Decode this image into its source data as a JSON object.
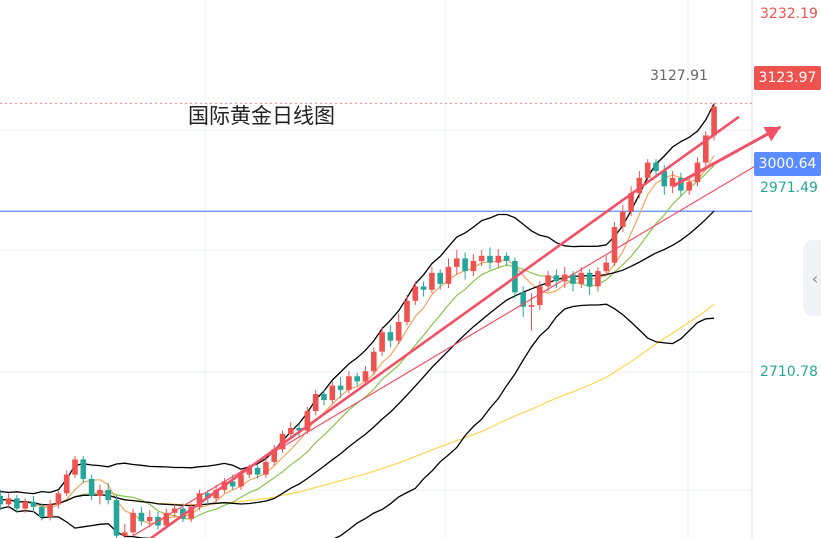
{
  "title": "国际黄金日线图",
  "price_axis": {
    "top_label": "3232.19",
    "ma_label": "2971.49",
    "bottom_label": "2710.78",
    "horizontal_line_label": "3000.64",
    "current_price_label": "3123.97",
    "peak_label": "3127.91"
  },
  "colors": {
    "up": "#ef5350",
    "down": "#26a69a",
    "boll": "#000000",
    "ma_fast": "#f4a460",
    "ma_mid": "#8bc34a",
    "ma_slow": "#ffd54f",
    "trendline": "#f25066",
    "hline": "#5b8cff"
  },
  "icons": {
    "scroll": "chevron-left-icon"
  },
  "chart_data": {
    "type": "candlestick",
    "title": "国际黄金日线图",
    "ylim": [
      2620,
      3245
    ],
    "candles": [
      [
        2662,
        2665,
        2650,
        2670
      ],
      [
        2665,
        2655,
        2648,
        2672
      ],
      [
        2655,
        2662,
        2650,
        2668
      ],
      [
        2662,
        2650,
        2645,
        2666
      ],
      [
        2650,
        2658,
        2645,
        2662
      ],
      [
        2658,
        2652,
        2645,
        2665
      ],
      [
        2652,
        2640,
        2636,
        2656
      ],
      [
        2640,
        2655,
        2636,
        2660
      ],
      [
        2655,
        2668,
        2650,
        2672
      ],
      [
        2668,
        2690,
        2665,
        2695
      ],
      [
        2690,
        2708,
        2686,
        2712
      ],
      [
        2708,
        2685,
        2680,
        2712
      ],
      [
        2685,
        2665,
        2660,
        2690
      ],
      [
        2665,
        2672,
        2655,
        2678
      ],
      [
        2672,
        2660,
        2655,
        2680
      ],
      [
        2660,
        2618,
        2612,
        2666
      ],
      [
        2618,
        2622,
        2612,
        2632
      ],
      [
        2622,
        2645,
        2618,
        2650
      ],
      [
        2645,
        2635,
        2630,
        2652
      ],
      [
        2635,
        2640,
        2628,
        2648
      ],
      [
        2640,
        2630,
        2625,
        2646
      ],
      [
        2630,
        2645,
        2626,
        2650
      ],
      [
        2645,
        2650,
        2640,
        2655
      ],
      [
        2650,
        2638,
        2634,
        2656
      ],
      [
        2638,
        2652,
        2634,
        2656
      ],
      [
        2652,
        2668,
        2648,
        2672
      ],
      [
        2668,
        2662,
        2655,
        2672
      ],
      [
        2662,
        2672,
        2658,
        2678
      ],
      [
        2672,
        2682,
        2668,
        2686
      ],
      [
        2682,
        2676,
        2672,
        2690
      ],
      [
        2676,
        2690,
        2672,
        2695
      ],
      [
        2690,
        2698,
        2686,
        2702
      ],
      [
        2698,
        2690,
        2685,
        2702
      ],
      [
        2690,
        2705,
        2686,
        2712
      ],
      [
        2705,
        2720,
        2700,
        2725
      ],
      [
        2720,
        2738,
        2716,
        2742
      ],
      [
        2738,
        2745,
        2734,
        2752
      ],
      [
        2745,
        2742,
        2735,
        2750
      ],
      [
        2742,
        2765,
        2738,
        2770
      ],
      [
        2765,
        2785,
        2760,
        2790
      ],
      [
        2785,
        2778,
        2772,
        2790
      ],
      [
        2778,
        2795,
        2774,
        2800
      ],
      [
        2795,
        2790,
        2780,
        2805
      ],
      [
        2790,
        2806,
        2786,
        2812
      ],
      [
        2806,
        2800,
        2794,
        2810
      ],
      [
        2800,
        2812,
        2796,
        2818
      ],
      [
        2812,
        2835,
        2808,
        2840
      ],
      [
        2835,
        2858,
        2830,
        2864
      ],
      [
        2858,
        2848,
        2840,
        2866
      ],
      [
        2848,
        2870,
        2844,
        2880
      ],
      [
        2870,
        2895,
        2866,
        2902
      ],
      [
        2895,
        2912,
        2890,
        2918
      ],
      [
        2912,
        2908,
        2900,
        2918
      ],
      [
        2908,
        2928,
        2904,
        2935
      ],
      [
        2928,
        2915,
        2908,
        2932
      ],
      [
        2915,
        2935,
        2910,
        2945
      ],
      [
        2935,
        2945,
        2926,
        2955
      ],
      [
        2945,
        2930,
        2920,
        2952
      ],
      [
        2930,
        2942,
        2924,
        2950
      ],
      [
        2942,
        2948,
        2936,
        2955
      ],
      [
        2948,
        2940,
        2932,
        2958
      ],
      [
        2940,
        2948,
        2934,
        2956
      ],
      [
        2948,
        2942,
        2936,
        2952
      ],
      [
        2942,
        2905,
        2898,
        2946
      ],
      [
        2905,
        2888,
        2876,
        2912
      ],
      [
        2888,
        2890,
        2860,
        2904
      ],
      [
        2890,
        2912,
        2884,
        2918
      ],
      [
        2912,
        2925,
        2906,
        2930
      ],
      [
        2925,
        2918,
        2910,
        2932
      ],
      [
        2918,
        2926,
        2910,
        2935
      ],
      [
        2926,
        2915,
        2906,
        2930
      ],
      [
        2915,
        2928,
        2910,
        2935
      ],
      [
        2928,
        2912,
        2902,
        2932
      ],
      [
        2912,
        2930,
        2906,
        2935
      ],
      [
        2930,
        2940,
        2924,
        2948
      ],
      [
        2940,
        2982,
        2936,
        2988
      ],
      [
        2982,
        3000,
        2976,
        3008
      ],
      [
        3000,
        3022,
        2995,
        3030
      ],
      [
        3022,
        3040,
        3016,
        3048
      ],
      [
        3040,
        3058,
        3034,
        3062
      ],
      [
        3058,
        3048,
        3040,
        3062
      ],
      [
        3048,
        3030,
        3020,
        3055
      ],
      [
        3030,
        3040,
        3022,
        3048
      ],
      [
        3040,
        3025,
        3018,
        3046
      ],
      [
        3025,
        3035,
        3020,
        3040
      ],
      [
        3035,
        3058,
        3030,
        3064
      ],
      [
        3058,
        3090,
        3052,
        3095
      ],
      [
        3090,
        3124,
        3084,
        3128
      ]
    ],
    "trendlines": [
      {
        "name": "lower-rising-trend",
        "from": [
          17,
          2600
        ],
        "to": [
          90,
          3112
        ]
      },
      {
        "name": "channel-trend",
        "from": [
          17,
          2618
        ],
        "to": [
          93,
          3060
        ]
      },
      {
        "name": "breakout-arrow",
        "from": [
          82,
          3030
        ],
        "to": [
          95,
          3100
        ]
      }
    ],
    "horizontal_line": 3000.64,
    "grid": true
  }
}
